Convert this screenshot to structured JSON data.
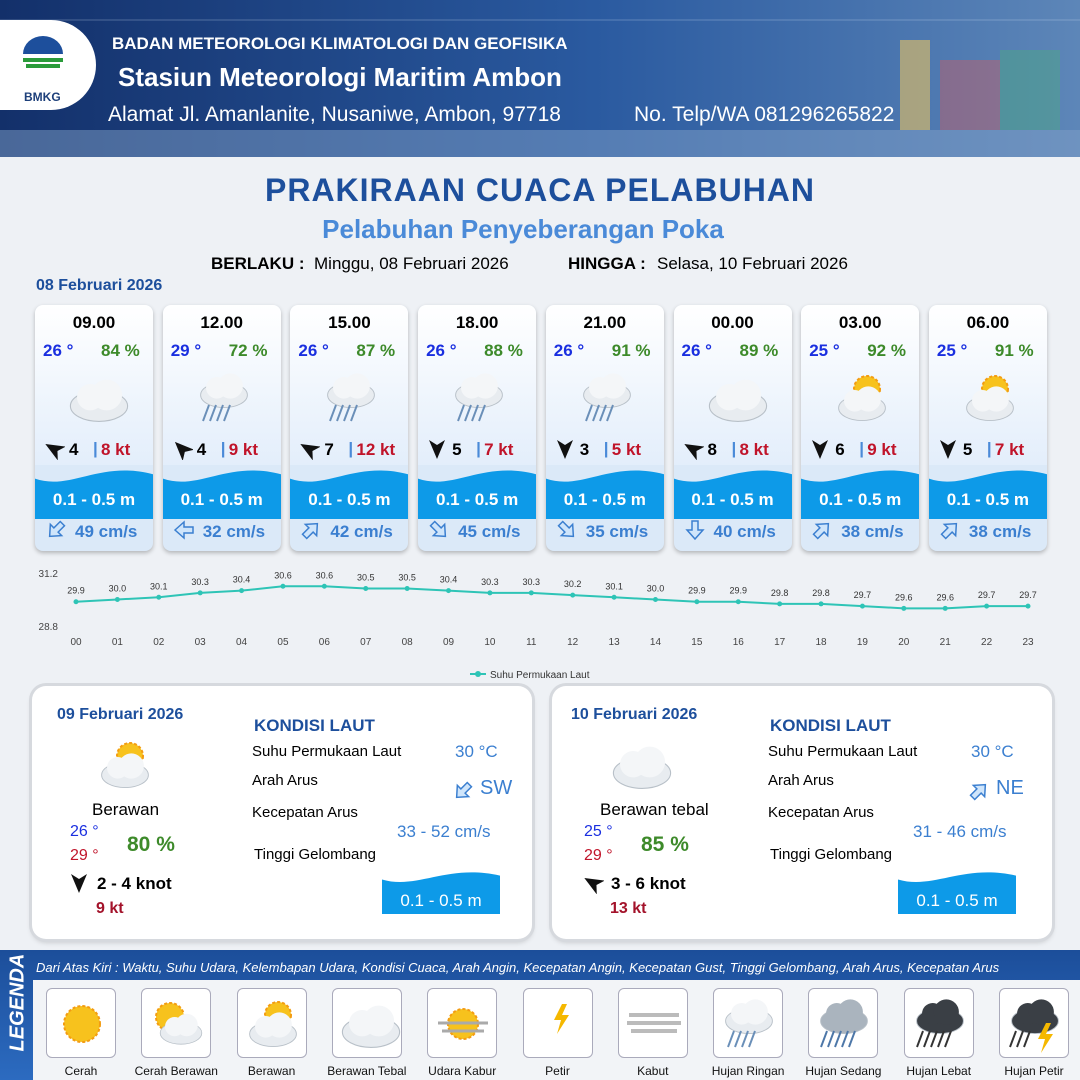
{
  "header": {
    "agency": "BADAN METEOROLOGI KLIMATOLOGI DAN GEOFISIKA",
    "station": "Stasiun Meteorologi Maritim Ambon",
    "address": "Alamat Jl. Amanlanite, Nusaniwe, Ambon, 97718",
    "phone": "No. Telp/WA  081296265822",
    "logo_text": "BMKG"
  },
  "title": "PRAKIRAAN CUACA PELABUHAN",
  "subtitle": "Pelabuhan Penyeberangan Poka",
  "valid_from_label": "BERLAKU :",
  "valid_from": "Minggu, 08 Februari 2026",
  "valid_to_label": "HINGGA :",
  "valid_to": "Selasa, 10 Februari 2026",
  "day_label": "08 Februari 2026",
  "forecasts": [
    {
      "time": "09.00",
      "temp": "26 °",
      "humidity": "84 %",
      "wind": "4",
      "gust": "8 kt",
      "wave": "0.1 - 0.5 m",
      "current": "49 cm/s"
    },
    {
      "time": "12.00",
      "temp": "29 °",
      "humidity": "72 %",
      "wind": "4",
      "gust": "9 kt",
      "wave": "0.1 - 0.5 m",
      "current": "32 cm/s"
    },
    {
      "time": "15.00",
      "temp": "26 °",
      "humidity": "87 %",
      "wind": "7",
      "gust": "12 kt",
      "wave": "0.1 - 0.5 m",
      "current": "42 cm/s"
    },
    {
      "time": "18.00",
      "temp": "26 °",
      "humidity": "88 %",
      "wind": "5",
      "gust": "7 kt",
      "wave": "0.1 - 0.5 m",
      "current": "45 cm/s"
    },
    {
      "time": "21.00",
      "temp": "26 °",
      "humidity": "91 %",
      "wind": "3",
      "gust": "5 kt",
      "wave": "0.1 - 0.5 m",
      "current": "35 cm/s"
    },
    {
      "time": "00.00",
      "temp": "26 °",
      "humidity": "89 %",
      "wind": "8",
      "gust": "8 kt",
      "wave": "0.1 - 0.5 m",
      "current": "40 cm/s"
    },
    {
      "time": "03.00",
      "temp": "25 °",
      "humidity": "92 %",
      "wind": "6",
      "gust": "9 kt",
      "wave": "0.1 - 0.5 m",
      "current": "38 cm/s"
    },
    {
      "time": "06.00",
      "temp": "25 °",
      "humidity": "91 %",
      "wind": "5",
      "gust": "7 kt",
      "wave": "0.1 - 0.5 m",
      "current": "38 cm/s"
    }
  ],
  "chart_data": {
    "type": "line",
    "categories": [
      "00",
      "01",
      "02",
      "03",
      "04",
      "05",
      "06",
      "07",
      "08",
      "09",
      "10",
      "11",
      "12",
      "13",
      "14",
      "15",
      "16",
      "17",
      "18",
      "19",
      "20",
      "21",
      "22",
      "23"
    ],
    "series": [
      {
        "name": "Suhu Permukaan Laut",
        "color": "#2ec4b6",
        "values": [
          29.9,
          30.0,
          30.1,
          30.3,
          30.4,
          30.6,
          30.6,
          30.5,
          30.5,
          30.4,
          30.3,
          30.3,
          30.2,
          30.1,
          30.0,
          29.9,
          29.9,
          29.8,
          29.8,
          29.7,
          29.6,
          29.6,
          29.7,
          29.7
        ],
        "value_labels": [
          "29.9",
          "30.0",
          "30.1",
          "30.3",
          "30.4",
          "30.6",
          "30.6",
          "30.5",
          "30.5",
          "30.4",
          "30.3",
          "30.3",
          "30.2",
          "30.1",
          "30.0",
          "29.9",
          "29.9",
          "29.8",
          "29.8",
          "29.7",
          "29.6",
          "29.6",
          "29.7",
          "29.7"
        ]
      }
    ],
    "ylim": [
      28.8,
      31.2
    ],
    "yticks": [
      28.8,
      31.2
    ],
    "legend": "bottom"
  },
  "days": [
    {
      "date": "09 Februari 2026",
      "weather": "Berawan",
      "temp_min": "26 °",
      "temp_max": "29 °",
      "humidity": "80 %",
      "wind": "2  - 4 knot",
      "gust": "9 kt",
      "sea_label": "KONDISI LAUT",
      "sst_label": "Suhu Permukaan Laut",
      "sst": "30 °C",
      "dir_label": "Arah Arus",
      "dir": "SW",
      "speed_label": "Kecepatan Arus",
      "speed": "33 - 52 cm/s",
      "wave_label": "Tinggi Gelombang",
      "wave": "0.1 - 0.5 m"
    },
    {
      "date": "10 Februari 2026",
      "weather": "Berawan tebal",
      "temp_min": "25 °",
      "temp_max": "29 °",
      "humidity": "85 %",
      "wind": "3  - 6 knot",
      "gust": "13 kt",
      "sea_label": "KONDISI LAUT",
      "sst_label": "Suhu Permukaan Laut",
      "sst": "30 °C",
      "dir_label": "Arah Arus",
      "dir": "NE",
      "speed_label": "Kecepatan Arus",
      "speed": "31 - 46 cm/s",
      "wave_label": "Tinggi Gelombang",
      "wave": "0.1 - 0.5 m"
    }
  ],
  "legend": {
    "title": "LEGENDA",
    "description": "Dari Atas Kiri : Waktu, Suhu Udara, Kelembapan Udara, Kondisi Cuaca, Arah Angin, Kecepatan Angin, Kecepatan Gust, Tinggi Gelombang, Arah Arus, Kecepatan Arus",
    "items": [
      "Cerah",
      "Cerah Berawan",
      "Berawan",
      "Berawan Tebal",
      "Udara Kabur",
      "Petir",
      "Kabut",
      "Hujan Ringan",
      "Hujan Sedang",
      "Hujan Lebat",
      "Hujan Petir"
    ]
  }
}
